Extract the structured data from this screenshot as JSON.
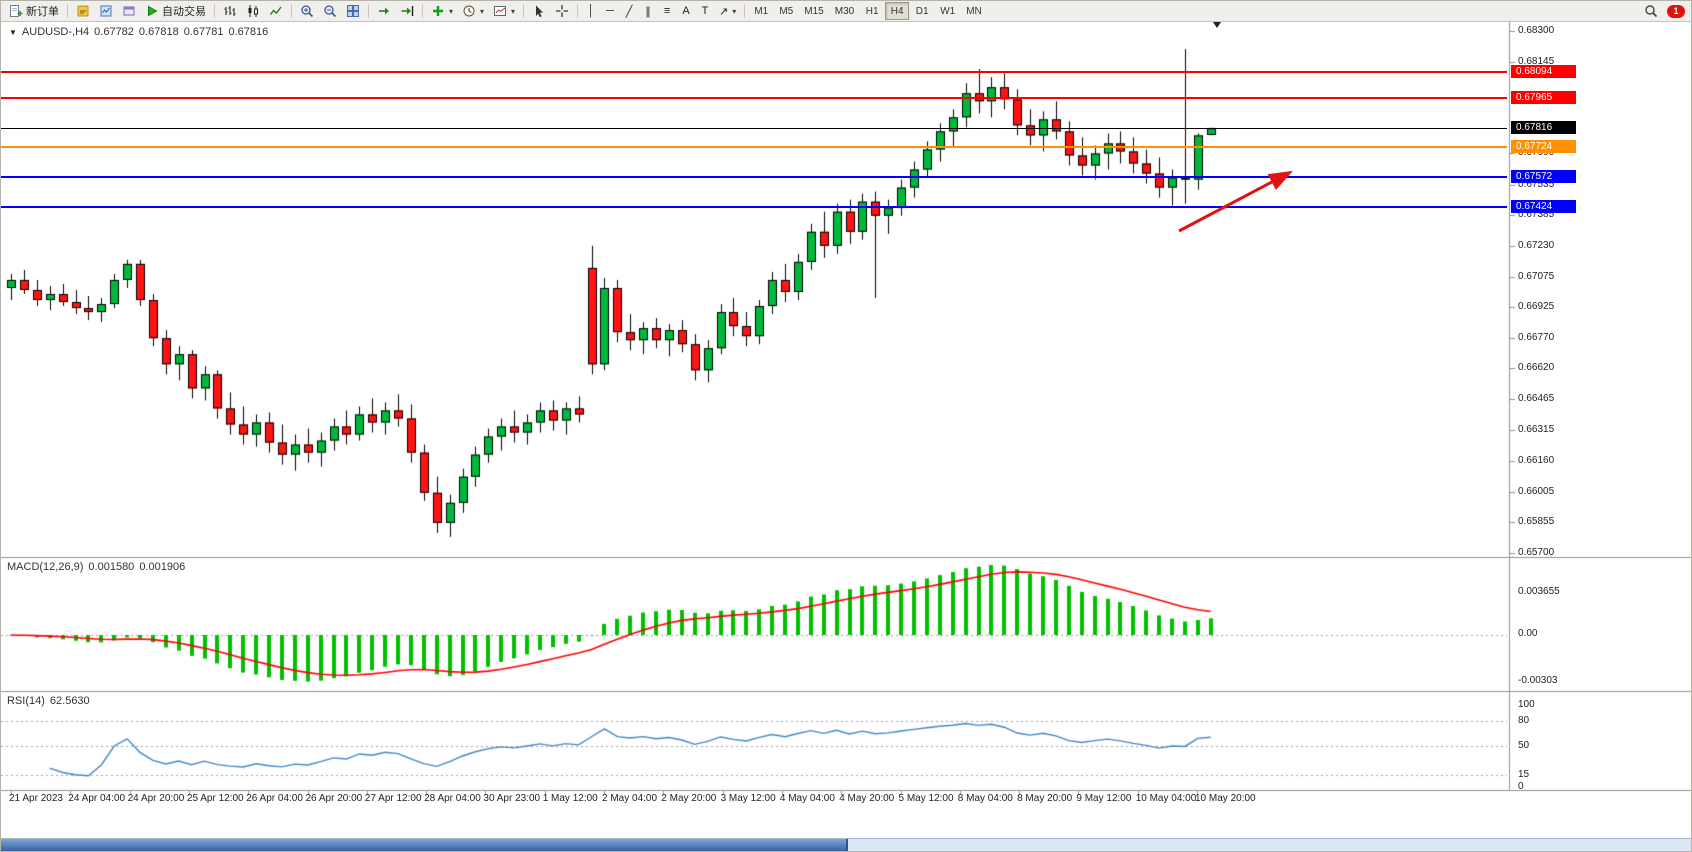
{
  "toolbar": {
    "new_order": "新订单",
    "auto_trading": "自动交易",
    "timeframes": [
      "M1",
      "M5",
      "M15",
      "M30",
      "H1",
      "H4",
      "D1",
      "W1",
      "MN"
    ],
    "active_timeframe": "H4",
    "notification_count": "1"
  },
  "icons": {
    "vertical_line": "│",
    "horizontal_line": "─",
    "trendline": "╱",
    "equidistant_channel": "∥",
    "fibonacci": "≡",
    "text": "A",
    "text_label": "T",
    "arrows": "↗",
    "caret": "▾",
    "collapse": "▼"
  },
  "chart": {
    "quote": {
      "symbol": "AUDUSD-,H4",
      "open": "0.67782",
      "high": "0.67818",
      "low": "0.67781",
      "close": "0.67816"
    },
    "price_axis_ticks": [
      "0.68300",
      "0.68145",
      "0.67690",
      "0.67535",
      "0.67385",
      "0.67230",
      "0.67075",
      "0.66925",
      "0.66770",
      "0.66620",
      "0.66465",
      "0.66315",
      "0.66160",
      "0.66005",
      "0.65855",
      "0.65700"
    ],
    "hlines": [
      {
        "name": "resistance-upper",
        "price": 0.68094,
        "label": "0.68094",
        "color": "#ff0000"
      },
      {
        "name": "resistance-lower",
        "price": 0.67965,
        "label": "0.67965",
        "color": "#ff0000"
      },
      {
        "name": "pivot-orange",
        "price": 0.67724,
        "label": "0.67724",
        "color": "#ff9000"
      },
      {
        "name": "support-upper",
        "price": 0.67572,
        "label": "0.67572",
        "color": "#0000ff"
      },
      {
        "name": "support-lower",
        "price": 0.67424,
        "label": "0.67424",
        "color": "#0000ff"
      }
    ],
    "bid_line": {
      "price": 0.67816,
      "label": "0.67816",
      "color": "#000000"
    },
    "time_axis": [
      "21 Apr 2023",
      "24 Apr 04:00",
      "24 Apr 20:00",
      "25 Apr 12:00",
      "26 Apr 04:00",
      "26 Apr 20:00",
      "27 Apr 12:00",
      "28 Apr 04:00",
      "30 Apr 23:00",
      "1 May 12:00",
      "2 May 04:00",
      "2 May 20:00",
      "3 May 12:00",
      "4 May 04:00",
      "4 May 20:00",
      "5 May 12:00",
      "8 May 04:00",
      "8 May 20:00",
      "9 May 12:00",
      "10 May 04:00",
      "10 May 20:00"
    ],
    "arrow_annotation": {
      "color": "#e01212",
      "direction": "up-right"
    }
  },
  "macd_panel": {
    "title": "MACD(12,26,9)",
    "value_main": "0.001580",
    "value_signal": "0.001906",
    "axis_labels": [
      "0.003655",
      "0.00",
      "-0.00303"
    ]
  },
  "rsi_panel": {
    "title": "RSI(14)",
    "value": "62.5630",
    "axis_labels": [
      "100",
      "80",
      "50",
      "15",
      "0"
    ]
  },
  "chart_data": {
    "type": "candlestick",
    "symbol": "AUDUSD-",
    "timeframe": "H4",
    "up_color": "#00b93c",
    "down_color": "#ff1414",
    "outline_color": "#000000",
    "price_range": [
      0.657,
      0.683
    ],
    "candles": [
      [
        0.6702,
        0.6709,
        0.6696,
        0.6706
      ],
      [
        0.6706,
        0.6711,
        0.6699,
        0.6701
      ],
      [
        0.6701,
        0.6706,
        0.6693,
        0.6696
      ],
      [
        0.6696,
        0.6703,
        0.6691,
        0.6699
      ],
      [
        0.6699,
        0.6704,
        0.6693,
        0.6695
      ],
      [
        0.6695,
        0.6701,
        0.6689,
        0.6692
      ],
      [
        0.6692,
        0.6698,
        0.6686,
        0.669
      ],
      [
        0.669,
        0.6697,
        0.6685,
        0.6694
      ],
      [
        0.6694,
        0.6709,
        0.6692,
        0.6706
      ],
      [
        0.6706,
        0.6716,
        0.6702,
        0.6714
      ],
      [
        0.6714,
        0.6716,
        0.6693,
        0.6696
      ],
      [
        0.6696,
        0.6699,
        0.6673,
        0.6677
      ],
      [
        0.6677,
        0.6681,
        0.6659,
        0.6664
      ],
      [
        0.6664,
        0.6673,
        0.6656,
        0.6669
      ],
      [
        0.6669,
        0.6671,
        0.6647,
        0.6652
      ],
      [
        0.6652,
        0.6663,
        0.6646,
        0.6659
      ],
      [
        0.6659,
        0.6661,
        0.6637,
        0.6642
      ],
      [
        0.6642,
        0.665,
        0.6629,
        0.6634
      ],
      [
        0.6634,
        0.6643,
        0.6624,
        0.6629
      ],
      [
        0.6629,
        0.6639,
        0.6623,
        0.6635
      ],
      [
        0.6635,
        0.664,
        0.662,
        0.6625
      ],
      [
        0.6625,
        0.6634,
        0.6614,
        0.6619
      ],
      [
        0.6619,
        0.6629,
        0.6611,
        0.6624
      ],
      [
        0.6624,
        0.6632,
        0.6615,
        0.662
      ],
      [
        0.662,
        0.663,
        0.6613,
        0.6626
      ],
      [
        0.6626,
        0.6637,
        0.6621,
        0.6633
      ],
      [
        0.6633,
        0.6641,
        0.6624,
        0.6629
      ],
      [
        0.6629,
        0.6643,
        0.6626,
        0.6639
      ],
      [
        0.6639,
        0.6647,
        0.663,
        0.6635
      ],
      [
        0.6635,
        0.6645,
        0.6629,
        0.6641
      ],
      [
        0.6641,
        0.6649,
        0.6633,
        0.6637
      ],
      [
        0.6637,
        0.6644,
        0.6615,
        0.662
      ],
      [
        0.662,
        0.6624,
        0.6596,
        0.66
      ],
      [
        0.66,
        0.6608,
        0.658,
        0.6585
      ],
      [
        0.6585,
        0.6599,
        0.6578,
        0.6595
      ],
      [
        0.6595,
        0.6612,
        0.659,
        0.6608
      ],
      [
        0.6608,
        0.6623,
        0.6603,
        0.6619
      ],
      [
        0.6619,
        0.6632,
        0.6615,
        0.6628
      ],
      [
        0.6628,
        0.6637,
        0.6621,
        0.6633
      ],
      [
        0.6633,
        0.6641,
        0.6625,
        0.663
      ],
      [
        0.663,
        0.6639,
        0.6624,
        0.6635
      ],
      [
        0.6635,
        0.6645,
        0.663,
        0.6641
      ],
      [
        0.6641,
        0.6646,
        0.6631,
        0.6636
      ],
      [
        0.6636,
        0.6645,
        0.6629,
        0.6642
      ],
      [
        0.6642,
        0.6648,
        0.6635,
        0.6639
      ],
      [
        0.6712,
        0.6723,
        0.6659,
        0.6664
      ],
      [
        0.6664,
        0.6707,
        0.6661,
        0.6702
      ],
      [
        0.6702,
        0.6706,
        0.6675,
        0.668
      ],
      [
        0.668,
        0.6689,
        0.6671,
        0.6676
      ],
      [
        0.6676,
        0.6685,
        0.6669,
        0.6682
      ],
      [
        0.6682,
        0.6687,
        0.6672,
        0.6676
      ],
      [
        0.6676,
        0.6684,
        0.6668,
        0.6681
      ],
      [
        0.6681,
        0.6686,
        0.667,
        0.6674
      ],
      [
        0.6674,
        0.6679,
        0.6656,
        0.6661
      ],
      [
        0.6661,
        0.6676,
        0.6655,
        0.6672
      ],
      [
        0.6672,
        0.6694,
        0.6669,
        0.669
      ],
      [
        0.669,
        0.6697,
        0.6678,
        0.6683
      ],
      [
        0.6683,
        0.669,
        0.6673,
        0.6678
      ],
      [
        0.6678,
        0.6696,
        0.6674,
        0.6693
      ],
      [
        0.6693,
        0.671,
        0.6689,
        0.6706
      ],
      [
        0.6706,
        0.6714,
        0.6695,
        0.67
      ],
      [
        0.67,
        0.6719,
        0.6696,
        0.6715
      ],
      [
        0.6715,
        0.6734,
        0.6711,
        0.673
      ],
      [
        0.673,
        0.674,
        0.6717,
        0.6723
      ],
      [
        0.6723,
        0.6744,
        0.6719,
        0.674
      ],
      [
        0.674,
        0.6746,
        0.6724,
        0.673
      ],
      [
        0.673,
        0.6749,
        0.6726,
        0.6745
      ],
      [
        0.6745,
        0.675,
        0.6697,
        0.6738
      ],
      [
        0.6738,
        0.6746,
        0.6729,
        0.6742
      ],
      [
        0.6742,
        0.6756,
        0.6738,
        0.6752
      ],
      [
        0.6752,
        0.6765,
        0.6747,
        0.6761
      ],
      [
        0.6761,
        0.6775,
        0.6757,
        0.6771
      ],
      [
        0.6771,
        0.6784,
        0.6765,
        0.678
      ],
      [
        0.678,
        0.6791,
        0.6772,
        0.6787
      ],
      [
        0.6787,
        0.6804,
        0.6782,
        0.6799
      ],
      [
        0.6799,
        0.6811,
        0.6789,
        0.6795
      ],
      [
        0.6795,
        0.6807,
        0.6787,
        0.6802
      ],
      [
        0.6802,
        0.6809,
        0.6791,
        0.6796
      ],
      [
        0.6796,
        0.6801,
        0.6778,
        0.6783
      ],
      [
        0.6783,
        0.6791,
        0.6773,
        0.6778
      ],
      [
        0.6778,
        0.679,
        0.677,
        0.6786
      ],
      [
        0.6786,
        0.6795,
        0.6776,
        0.678
      ],
      [
        0.678,
        0.6785,
        0.6763,
        0.6768
      ],
      [
        0.6768,
        0.6777,
        0.6758,
        0.6763
      ],
      [
        0.6763,
        0.6773,
        0.6756,
        0.6769
      ],
      [
        0.6769,
        0.6779,
        0.6761,
        0.6774
      ],
      [
        0.6774,
        0.678,
        0.6764,
        0.677
      ],
      [
        0.677,
        0.6777,
        0.6759,
        0.6764
      ],
      [
        0.6764,
        0.6771,
        0.6754,
        0.6759
      ],
      [
        0.6759,
        0.6767,
        0.6747,
        0.6752
      ],
      [
        0.6752,
        0.6761,
        0.6743,
        0.6757
      ],
      [
        0.6757,
        0.6821,
        0.6744,
        0.6756
      ],
      [
        0.6756,
        0.6779,
        0.6751,
        0.6778
      ],
      [
        0.67782,
        0.67818,
        0.67781,
        0.67816
      ]
    ],
    "indicators": [
      {
        "type": "macd",
        "params": [
          12,
          26,
          9
        ],
        "histogram_color": "#00c000",
        "signal_color": "#ff0000",
        "current_values": [
          0.00158,
          0.001906
        ]
      },
      {
        "type": "rsi",
        "params": [
          14
        ],
        "line_color": "#4186c6",
        "current_value": 62.563,
        "levels": [
          80,
          50,
          15
        ]
      }
    ]
  }
}
